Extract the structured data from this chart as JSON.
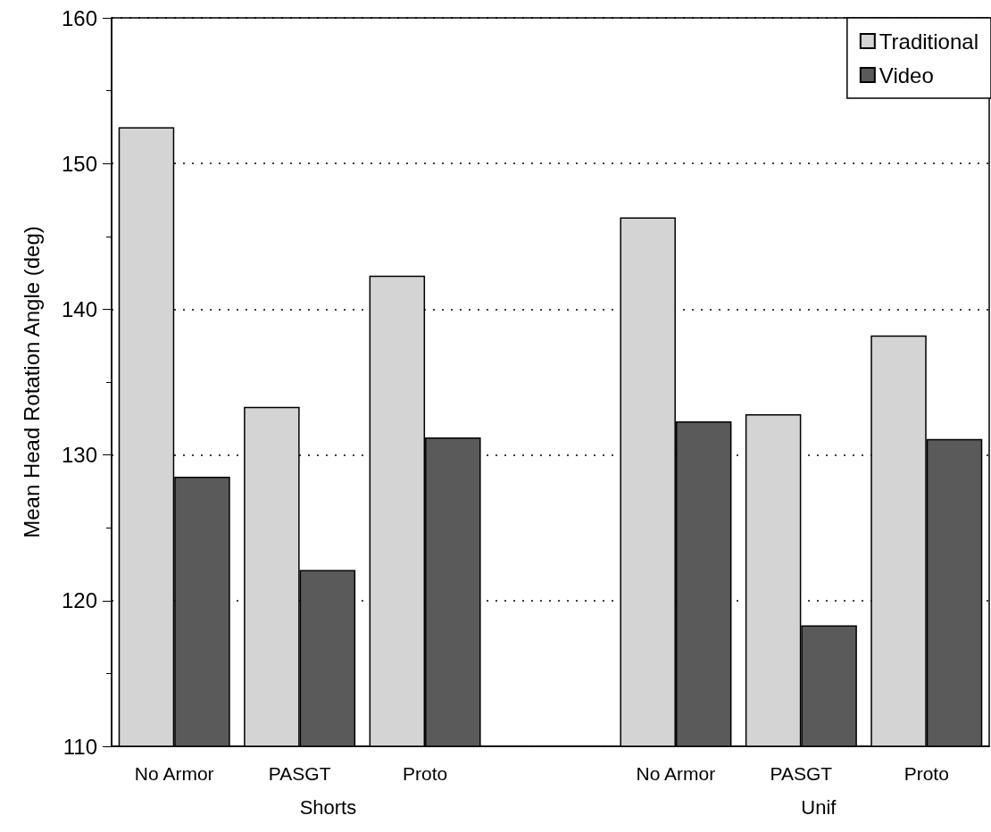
{
  "chart_data": {
    "type": "bar",
    "ylabel": "Mean Head Rotation Angle (deg)",
    "categories": [
      "No Armor",
      "PASGT",
      "Proto",
      null,
      "No Armor",
      "PASGT",
      "Proto"
    ],
    "series": [
      {
        "name": "Traditional",
        "color": "#d4d4d4",
        "values": [
          152.5,
          133.3,
          142.3,
          null,
          146.3,
          132.8,
          138.2
        ]
      },
      {
        "name": "Video",
        "color": "#5a5a5a",
        "values": [
          128.5,
          122.1,
          131.2,
          null,
          132.3,
          118.3,
          131.1
        ]
      }
    ],
    "ylim": [
      110,
      160
    ],
    "yticks": [
      110,
      120,
      130,
      140,
      150,
      160
    ],
    "grid": "y",
    "legend": "top right",
    "annotations": [
      "Shorts",
      "Unif"
    ]
  }
}
